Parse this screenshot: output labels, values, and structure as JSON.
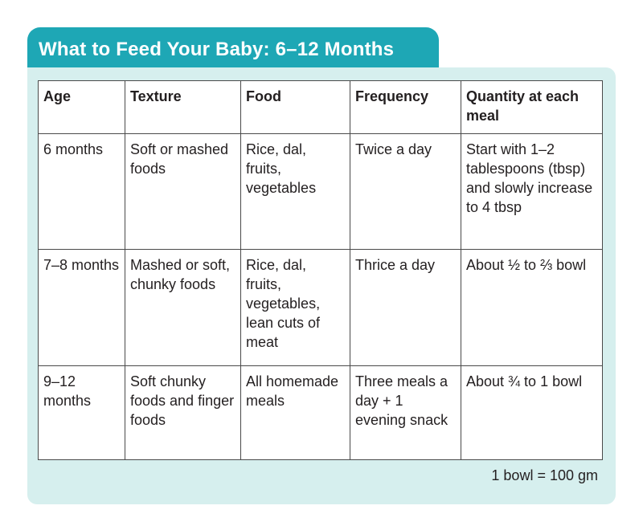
{
  "title": "What to Feed Your Baby: 6–12 Months",
  "table": {
    "headers": [
      "Age",
      "Texture",
      "Food",
      "Frequency",
      "Quantity at each meal"
    ],
    "rows": [
      [
        "6 months",
        "Soft or mashed foods",
        "Rice, dal, fruits, vegetables",
        "Twice a day",
        "Start with 1–2 tablespoons (tbsp) and slowly increase to 4 tbsp"
      ],
      [
        "7–8 months",
        "Mashed or soft, chunky foods",
        "Rice, dal, fruits, vegetables, lean cuts of meat",
        "Thrice a day",
        "About ½ to ⅔ bowl"
      ],
      [
        "9–12 months",
        "Soft chunky foods and finger foods",
        "All homemade meals",
        "Three meals a day + 1 evening snack",
        "About ¾ to 1 bowl"
      ]
    ]
  },
  "footnote": "1 bowl = 100 gm",
  "colors": {
    "title_bg": "#1ea7b5",
    "card_bg": "#d6efee",
    "border": "#4a4a4a"
  }
}
